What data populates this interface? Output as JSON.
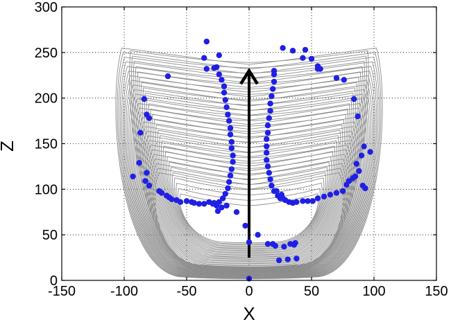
{
  "chart_data": {
    "type": "scatter",
    "title": "",
    "xlabel": "X",
    "ylabel": "Z",
    "xlim": [
      -150,
      150
    ],
    "ylim": [
      0,
      300
    ],
    "xticks": [
      "-150",
      "-100",
      "-50",
      "0",
      "50",
      "100",
      "150"
    ],
    "yticks": [
      "0",
      "50",
      "100",
      "150",
      "200",
      "250",
      "300"
    ],
    "grid": true,
    "colors": {
      "points": "#1f1fe6",
      "trajectories": "#8c8c8c",
      "arrow": "#000000"
    },
    "arrow": {
      "x": 0,
      "y_start": 25,
      "y_end": 230
    },
    "trajectories": {
      "count": 28,
      "inner": {
        "x_half_width_range": [
          55,
          95
        ],
        "y_bottom_range": [
          42,
          10
        ],
        "y_top_range": [
          95,
          252
        ]
      },
      "outer": {
        "x_half_width_range": [
          72,
          102
        ],
        "y_bottom_range": [
          15,
          2
        ],
        "y_top_range": [
          118,
          255
        ]
      }
    },
    "points": {
      "left_outer": [
        [
          -34,
          262
        ],
        [
          -24,
          247
        ],
        [
          -36,
          244
        ],
        [
          -34,
          232
        ],
        [
          -26,
          234
        ],
        [
          -65,
          224
        ],
        [
          -84,
          199
        ],
        [
          -82,
          182
        ],
        [
          -80,
          178
        ],
        [
          -87,
          162
        ],
        [
          -88,
          129
        ],
        [
          -82,
          118
        ],
        [
          -93,
          114
        ],
        [
          -83,
          109
        ],
        [
          -80,
          104
        ],
        [
          -72,
          98
        ],
        [
          -70,
          96
        ],
        [
          -66,
          93
        ],
        [
          -64,
          91
        ],
        [
          -62,
          89
        ],
        [
          -58,
          88
        ],
        [
          -55,
          86
        ],
        [
          -50,
          87
        ],
        [
          -46,
          86
        ],
        [
          -44,
          85
        ],
        [
          -40,
          84
        ],
        [
          -36,
          84
        ],
        [
          -32,
          86
        ],
        [
          -28,
          85
        ],
        [
          -26,
          82
        ],
        [
          -22,
          80
        ],
        [
          -25,
          76
        ],
        [
          -18,
          82
        ]
      ],
      "left_stem": [
        [
          -28,
          233
        ],
        [
          -24,
          226
        ],
        [
          -22,
          220
        ],
        [
          -20,
          213
        ],
        [
          -20,
          206
        ],
        [
          -19,
          198
        ],
        [
          -18,
          190
        ],
        [
          -17,
          182
        ],
        [
          -16,
          175
        ],
        [
          -15,
          167
        ],
        [
          -15,
          160
        ],
        [
          -14,
          152
        ],
        [
          -14,
          145
        ],
        [
          -13,
          137
        ],
        [
          -13,
          130
        ],
        [
          -14,
          122
        ],
        [
          -15,
          115
        ],
        [
          -16,
          108
        ],
        [
          -17,
          101
        ],
        [
          -19,
          95
        ],
        [
          -21,
          90
        ],
        [
          -24,
          86
        ],
        [
          -29,
          84
        ]
      ],
      "right_outer": [
        [
          27,
          255
        ],
        [
          35,
          252
        ],
        [
          45,
          253
        ],
        [
          43,
          244
        ],
        [
          50,
          243
        ],
        [
          55,
          235
        ],
        [
          55,
          232
        ],
        [
          57,
          232
        ],
        [
          70,
          222
        ],
        [
          76,
          220
        ],
        [
          84,
          199
        ],
        [
          87,
          180
        ],
        [
          92,
          147
        ],
        [
          97,
          141
        ],
        [
          90,
          137
        ],
        [
          86,
          128
        ],
        [
          88,
          120
        ],
        [
          85,
          114
        ],
        [
          83,
          112
        ],
        [
          80,
          109
        ],
        [
          78,
          105
        ],
        [
          91,
          104
        ],
        [
          93,
          101
        ],
        [
          75,
          98
        ],
        [
          70,
          96
        ],
        [
          65,
          94
        ],
        [
          60,
          92
        ],
        [
          55,
          90
        ],
        [
          51,
          87
        ],
        [
          47,
          87
        ],
        [
          43,
          87
        ],
        [
          38,
          86
        ],
        [
          35,
          85
        ],
        [
          32,
          86
        ],
        [
          29,
          88
        ],
        [
          27,
          90
        ],
        [
          25,
          90
        ],
        [
          26,
          94
        ],
        [
          22,
          98
        ]
      ],
      "right_stem": [
        [
          20,
          230
        ],
        [
          20,
          226
        ],
        [
          20,
          218
        ],
        [
          19,
          210
        ],
        [
          18,
          202
        ],
        [
          17,
          194
        ],
        [
          17,
          186
        ],
        [
          16,
          178
        ],
        [
          15,
          170
        ],
        [
          15,
          162
        ],
        [
          14,
          155
        ],
        [
          14,
          147
        ],
        [
          14,
          140
        ],
        [
          14,
          132
        ],
        [
          15,
          125
        ],
        [
          16,
          118
        ],
        [
          17,
          111
        ],
        [
          18,
          104
        ],
        [
          20,
          98
        ],
        [
          23,
          93
        ]
      ],
      "center_bottom": [
        [
          -10,
          75
        ],
        [
          -3,
          60
        ],
        [
          0,
          42
        ],
        [
          7,
          50
        ],
        [
          21,
          38
        ],
        [
          15,
          40
        ],
        [
          19,
          40
        ],
        [
          37,
          41
        ],
        [
          36,
          39
        ],
        [
          33,
          40
        ],
        [
          28,
          37
        ],
        [
          24,
          22
        ],
        [
          31,
          23
        ],
        [
          38,
          24
        ],
        [
          0,
          2
        ]
      ]
    }
  }
}
